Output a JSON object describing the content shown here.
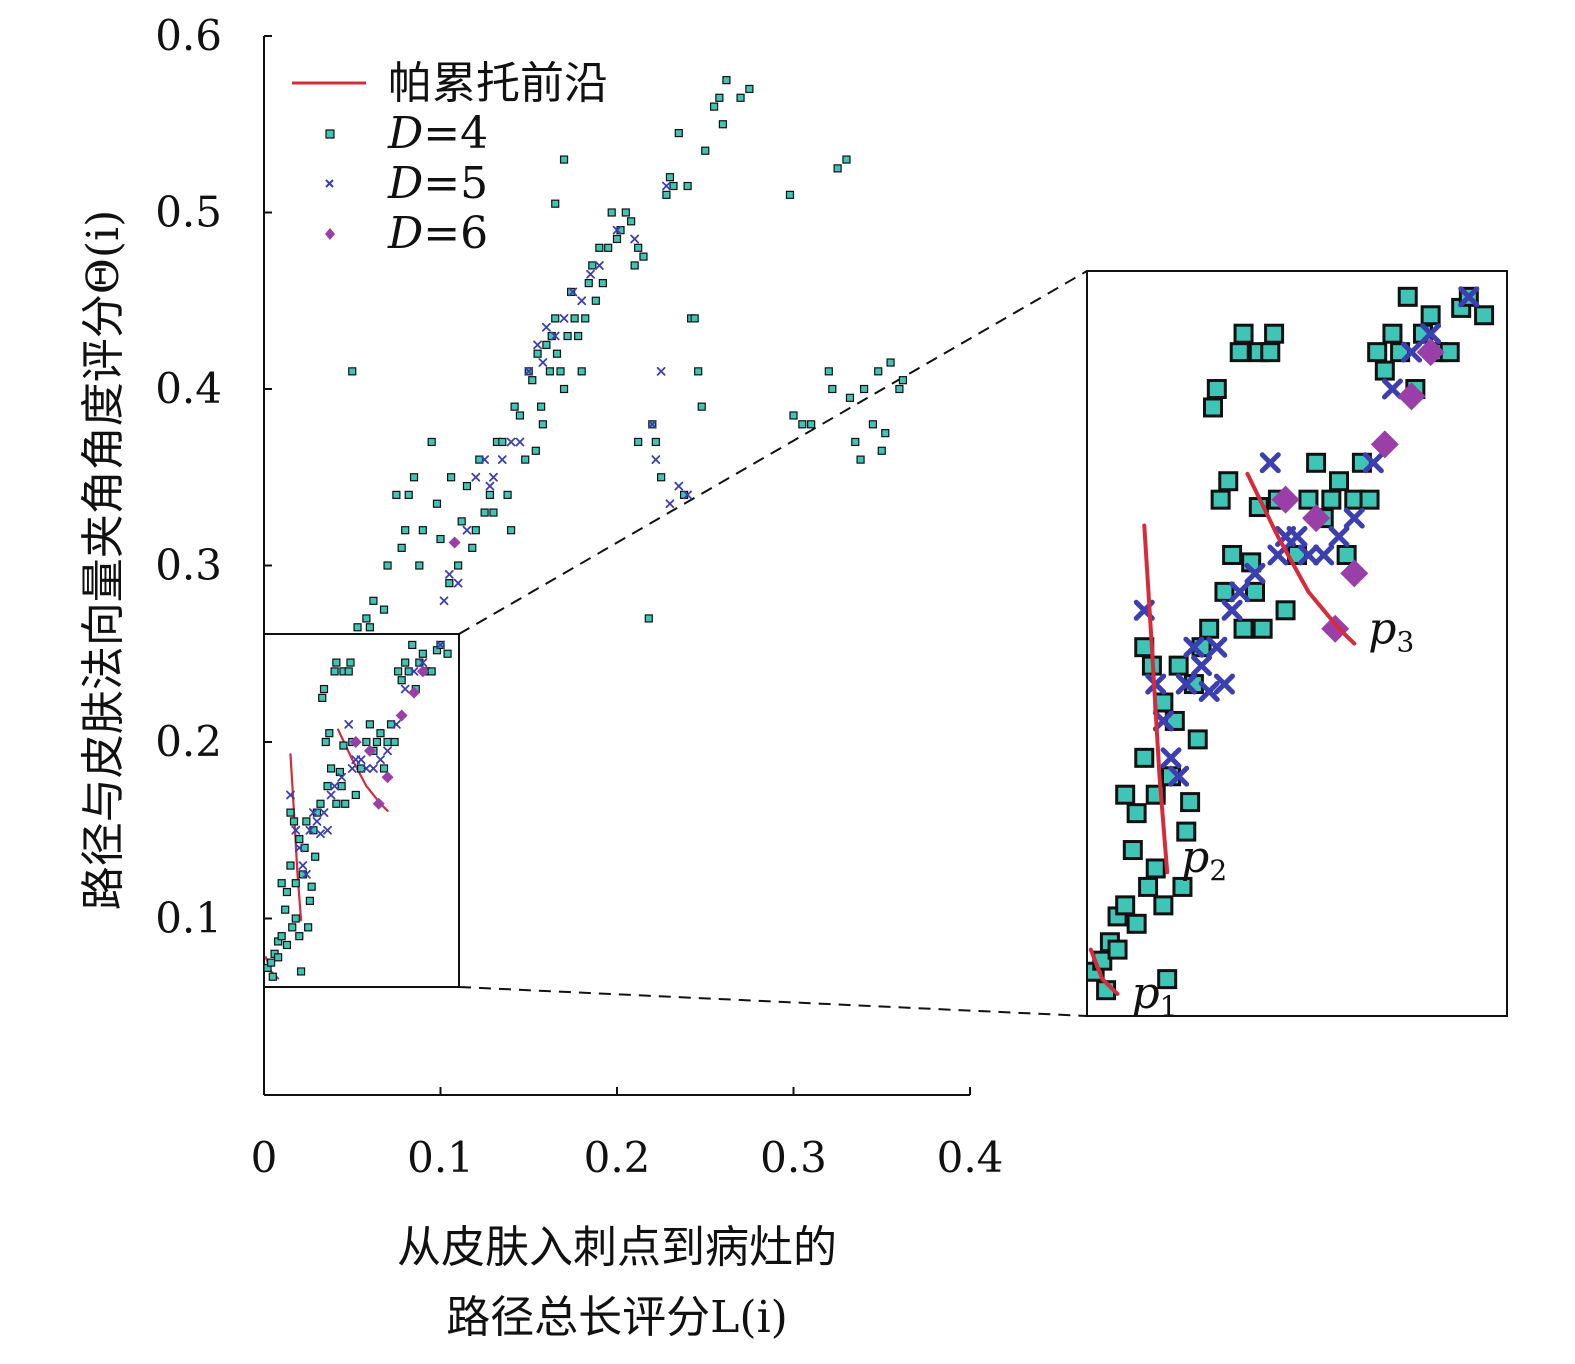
{
  "chart_data": {
    "type": "scatter",
    "xlabel_line1": "从皮肤入刺点到病灶的",
    "xlabel_line2": "路径总长评分L(i)",
    "ylabel": "路径与皮肤法向量夹角角度评分Θ(i)",
    "xlim": [
      0,
      0.4
    ],
    "ylim": [
      0,
      0.6
    ],
    "x_ticks": [
      "0",
      "0.1",
      "0.2",
      "0.3",
      "0.4"
    ],
    "y_ticks": [
      "0.1",
      "0.2",
      "0.3",
      "0.4",
      "0.5",
      "0.6"
    ],
    "legend_position": "top-left",
    "legend": {
      "pareto": "帕累托前沿",
      "d4_var": "D",
      "d4_rest": "=4",
      "d5_var": "D",
      "d5_rest": "=5",
      "d6_var": "D",
      "d6_rest": "=6"
    },
    "colors": {
      "D4": "#3fc5b5",
      "D5": "#3b3fb0",
      "D6": "#9b3fa8",
      "pareto": "#d62b3a"
    },
    "inset": {
      "xlim": [
        0,
        0.11
      ],
      "ylim": [
        0.06,
        0.262
      ]
    },
    "pareto_labels": [
      {
        "main": "p",
        "sub": "1"
      },
      {
        "main": "p",
        "sub": "2"
      },
      {
        "main": "p",
        "sub": "3"
      }
    ],
    "pareto_fronts": [
      [
        [
          0.001,
          0.078
        ],
        [
          0.004,
          0.07
        ],
        [
          0.008,
          0.066
        ]
      ],
      [
        [
          0.015,
          0.193
        ],
        [
          0.017,
          0.16
        ],
        [
          0.019,
          0.125
        ],
        [
          0.021,
          0.099
        ]
      ],
      [
        [
          0.042,
          0.207
        ],
        [
          0.05,
          0.19
        ],
        [
          0.058,
          0.175
        ],
        [
          0.066,
          0.165
        ],
        [
          0.07,
          0.161
        ]
      ]
    ],
    "series": [
      {
        "name": "D=4",
        "points": [
          [
            0.002,
            0.072
          ],
          [
            0.004,
            0.075
          ],
          [
            0.005,
            0.067
          ],
          [
            0.006,
            0.08
          ],
          [
            0.008,
            0.078
          ],
          [
            0.008,
            0.087
          ],
          [
            0.01,
            0.09
          ],
          [
            0.01,
            0.12
          ],
          [
            0.012,
            0.105
          ],
          [
            0.013,
            0.115
          ],
          [
            0.013,
            0.085
          ],
          [
            0.015,
            0.16
          ],
          [
            0.015,
            0.13
          ],
          [
            0.016,
            0.095
          ],
          [
            0.017,
            0.155
          ],
          [
            0.018,
            0.1
          ],
          [
            0.018,
            0.12
          ],
          [
            0.02,
            0.145
          ],
          [
            0.02,
            0.09
          ],
          [
            0.021,
            0.07
          ],
          [
            0.022,
            0.125
          ],
          [
            0.023,
            0.14
          ],
          [
            0.024,
            0.155
          ],
          [
            0.025,
            0.095
          ],
          [
            0.026,
            0.11
          ],
          [
            0.027,
            0.118
          ],
          [
            0.028,
            0.15
          ],
          [
            0.029,
            0.135
          ],
          [
            0.03,
            0.16
          ],
          [
            0.032,
            0.165
          ],
          [
            0.033,
            0.225
          ],
          [
            0.034,
            0.23
          ],
          [
            0.035,
            0.2
          ],
          [
            0.036,
            0.175
          ],
          [
            0.037,
            0.205
          ],
          [
            0.038,
            0.185
          ],
          [
            0.04,
            0.24
          ],
          [
            0.041,
            0.245
          ],
          [
            0.041,
            0.165
          ],
          [
            0.043,
            0.183
          ],
          [
            0.044,
            0.175
          ],
          [
            0.045,
            0.24
          ],
          [
            0.045,
            0.198
          ],
          [
            0.046,
            0.165
          ],
          [
            0.048,
            0.24
          ],
          [
            0.049,
            0.245
          ],
          [
            0.05,
            0.2
          ],
          [
            0.052,
            0.17
          ],
          [
            0.055,
            0.185
          ],
          [
            0.058,
            0.2
          ],
          [
            0.06,
            0.21
          ],
          [
            0.062,
            0.195
          ],
          [
            0.064,
            0.2
          ],
          [
            0.066,
            0.205
          ],
          [
            0.068,
            0.185
          ],
          [
            0.07,
            0.2
          ],
          [
            0.072,
            0.21
          ],
          [
            0.074,
            0.2
          ],
          [
            0.076,
            0.24
          ],
          [
            0.078,
            0.235
          ],
          [
            0.08,
            0.245
          ],
          [
            0.082,
            0.24
          ],
          [
            0.084,
            0.255
          ],
          [
            0.086,
            0.23
          ],
          [
            0.088,
            0.245
          ],
          [
            0.09,
            0.25
          ],
          [
            0.092,
            0.24
          ],
          [
            0.095,
            0.24
          ],
          [
            0.098,
            0.252
          ],
          [
            0.1,
            0.255
          ],
          [
            0.104,
            0.25
          ],
          [
            0.053,
            0.265
          ],
          [
            0.058,
            0.27
          ],
          [
            0.06,
            0.265
          ],
          [
            0.062,
            0.28
          ],
          [
            0.068,
            0.275
          ],
          [
            0.07,
            0.3
          ],
          [
            0.075,
            0.34
          ],
          [
            0.078,
            0.31
          ],
          [
            0.08,
            0.32
          ],
          [
            0.082,
            0.34
          ],
          [
            0.085,
            0.35
          ],
          [
            0.088,
            0.3
          ],
          [
            0.09,
            0.32
          ],
          [
            0.095,
            0.37
          ],
          [
            0.098,
            0.335
          ],
          [
            0.1,
            0.315
          ],
          [
            0.105,
            0.29
          ],
          [
            0.106,
            0.35
          ],
          [
            0.11,
            0.3
          ],
          [
            0.112,
            0.325
          ],
          [
            0.115,
            0.345
          ],
          [
            0.118,
            0.31
          ],
          [
            0.12,
            0.32
          ],
          [
            0.122,
            0.36
          ],
          [
            0.125,
            0.33
          ],
          [
            0.128,
            0.34
          ],
          [
            0.13,
            0.33
          ],
          [
            0.132,
            0.37
          ],
          [
            0.135,
            0.37
          ],
          [
            0.138,
            0.34
          ],
          [
            0.14,
            0.32
          ],
          [
            0.142,
            0.39
          ],
          [
            0.145,
            0.385
          ],
          [
            0.148,
            0.36
          ],
          [
            0.15,
            0.41
          ],
          [
            0.152,
            0.405
          ],
          [
            0.154,
            0.365
          ],
          [
            0.155,
            0.42
          ],
          [
            0.157,
            0.39
          ],
          [
            0.158,
            0.38
          ],
          [
            0.16,
            0.425
          ],
          [
            0.162,
            0.41
          ],
          [
            0.163,
            0.43
          ],
          [
            0.165,
            0.44
          ],
          [
            0.166,
            0.42
          ],
          [
            0.168,
            0.41
          ],
          [
            0.17,
            0.4
          ],
          [
            0.172,
            0.43
          ],
          [
            0.174,
            0.455
          ],
          [
            0.176,
            0.44
          ],
          [
            0.178,
            0.43
          ],
          [
            0.18,
            0.41
          ],
          [
            0.182,
            0.44
          ],
          [
            0.184,
            0.46
          ],
          [
            0.186,
            0.47
          ],
          [
            0.188,
            0.45
          ],
          [
            0.19,
            0.48
          ],
          [
            0.192,
            0.46
          ],
          [
            0.195,
            0.48
          ],
          [
            0.197,
            0.5
          ],
          [
            0.2,
            0.485
          ],
          [
            0.202,
            0.49
          ],
          [
            0.205,
            0.5
          ],
          [
            0.208,
            0.495
          ],
          [
            0.21,
            0.47
          ],
          [
            0.212,
            0.48
          ],
          [
            0.215,
            0.475
          ],
          [
            0.218,
            0.27
          ],
          [
            0.22,
            0.38
          ],
          [
            0.222,
            0.37
          ],
          [
            0.225,
            0.35
          ],
          [
            0.228,
            0.51
          ],
          [
            0.23,
            0.52
          ],
          [
            0.232,
            0.515
          ],
          [
            0.235,
            0.545
          ],
          [
            0.238,
            0.34
          ],
          [
            0.24,
            0.515
          ],
          [
            0.242,
            0.44
          ],
          [
            0.244,
            0.44
          ],
          [
            0.246,
            0.41
          ],
          [
            0.248,
            0.39
          ],
          [
            0.25,
            0.535
          ],
          [
            0.255,
            0.56
          ],
          [
            0.258,
            0.565
          ],
          [
            0.26,
            0.55
          ],
          [
            0.262,
            0.575
          ],
          [
            0.27,
            0.565
          ],
          [
            0.275,
            0.57
          ],
          [
            0.05,
            0.41
          ],
          [
            0.165,
            0.505
          ],
          [
            0.17,
            0.53
          ],
          [
            0.212,
            0.37
          ],
          [
            0.298,
            0.51
          ],
          [
            0.3,
            0.385
          ],
          [
            0.305,
            0.38
          ],
          [
            0.31,
            0.38
          ],
          [
            0.32,
            0.41
          ],
          [
            0.322,
            0.4
          ],
          [
            0.325,
            0.525
          ],
          [
            0.33,
            0.53
          ],
          [
            0.332,
            0.395
          ],
          [
            0.335,
            0.37
          ],
          [
            0.338,
            0.36
          ],
          [
            0.34,
            0.4
          ],
          [
            0.345,
            0.38
          ],
          [
            0.348,
            0.41
          ],
          [
            0.35,
            0.365
          ],
          [
            0.352,
            0.375
          ],
          [
            0.355,
            0.415
          ],
          [
            0.36,
            0.4
          ],
          [
            0.362,
            0.405
          ]
        ]
      },
      {
        "name": "D=5",
        "points": [
          [
            0.015,
            0.17
          ],
          [
            0.018,
            0.15
          ],
          [
            0.02,
            0.14
          ],
          [
            0.022,
            0.13
          ],
          [
            0.024,
            0.125
          ],
          [
            0.026,
            0.15
          ],
          [
            0.028,
            0.16
          ],
          [
            0.03,
            0.155
          ],
          [
            0.032,
            0.148
          ],
          [
            0.034,
            0.16
          ],
          [
            0.036,
            0.15
          ],
          [
            0.038,
            0.17
          ],
          [
            0.04,
            0.175
          ],
          [
            0.044,
            0.18
          ],
          [
            0.048,
            0.21
          ],
          [
            0.05,
            0.185
          ],
          [
            0.052,
            0.19
          ],
          [
            0.055,
            0.19
          ],
          [
            0.058,
            0.185
          ],
          [
            0.062,
            0.185
          ],
          [
            0.066,
            0.19
          ],
          [
            0.07,
            0.195
          ],
          [
            0.075,
            0.21
          ],
          [
            0.08,
            0.23
          ],
          [
            0.085,
            0.24
          ],
          [
            0.09,
            0.245
          ],
          [
            0.1,
            0.255
          ],
          [
            0.102,
            0.28
          ],
          [
            0.105,
            0.295
          ],
          [
            0.11,
            0.29
          ],
          [
            0.115,
            0.32
          ],
          [
            0.12,
            0.35
          ],
          [
            0.125,
            0.36
          ],
          [
            0.128,
            0.345
          ],
          [
            0.13,
            0.35
          ],
          [
            0.135,
            0.36
          ],
          [
            0.14,
            0.37
          ],
          [
            0.145,
            0.37
          ],
          [
            0.15,
            0.41
          ],
          [
            0.155,
            0.425
          ],
          [
            0.158,
            0.415
          ],
          [
            0.16,
            0.435
          ],
          [
            0.165,
            0.43
          ],
          [
            0.17,
            0.44
          ],
          [
            0.175,
            0.455
          ],
          [
            0.18,
            0.45
          ],
          [
            0.185,
            0.465
          ],
          [
            0.19,
            0.47
          ],
          [
            0.2,
            0.49
          ],
          [
            0.21,
            0.485
          ],
          [
            0.22,
            0.38
          ],
          [
            0.222,
            0.36
          ],
          [
            0.225,
            0.41
          ],
          [
            0.228,
            0.515
          ],
          [
            0.23,
            0.335
          ],
          [
            0.235,
            0.345
          ],
          [
            0.24,
            0.34
          ]
        ]
      },
      {
        "name": "D=6",
        "points": [
          [
            0.052,
            0.2
          ],
          [
            0.06,
            0.195
          ],
          [
            0.065,
            0.165
          ],
          [
            0.07,
            0.18
          ],
          [
            0.078,
            0.215
          ],
          [
            0.085,
            0.228
          ],
          [
            0.09,
            0.24
          ],
          [
            0.108,
            0.313
          ]
        ]
      }
    ]
  }
}
